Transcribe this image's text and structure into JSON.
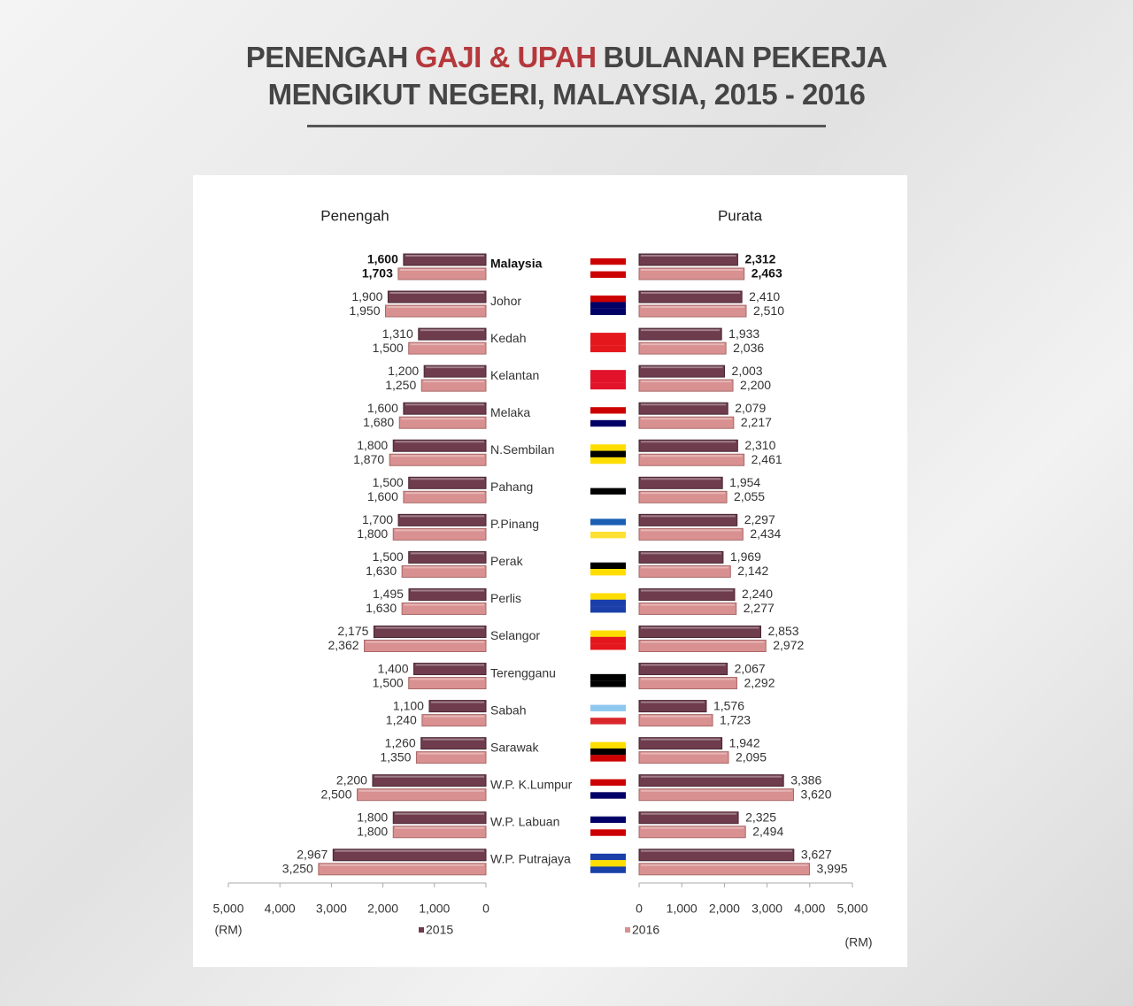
{
  "header": {
    "title": [
      "PENENGAH",
      "GAJI & UPAH",
      "BULANAN PEKERJA",
      "MENGIKUT NEGERI, MALAYSIA, 2015 - 2016"
    ]
  },
  "chart_data": {
    "type": "bar",
    "orientation": "horizontal",
    "categories": [
      "Malaysia",
      "Johor",
      "Kedah",
      "Kelantan",
      "Melaka",
      "N.Sembilan",
      "Pahang",
      "P.Pinang",
      "Perak",
      "Perlis",
      "Selangor",
      "Terengganu",
      "Sabah",
      "Sarawak",
      "W.P. K.Lumpur",
      "W.P. Labuan",
      "W.P. Putrajaya"
    ],
    "legend": [
      {
        "name": "2015",
        "color": "#6e3c4c"
      },
      {
        "name": "2016",
        "color": "#d99090"
      }
    ],
    "panels": [
      {
        "title": "Penengah",
        "reversed": true,
        "xlabel": "(RM)",
        "xlim": [
          0,
          5000
        ],
        "xticks": [
          0,
          {
            "value": 1000,
            "label": "1,000"
          },
          {
            "value": 2000,
            "label": "2,000"
          },
          {
            "value": 3000,
            "label": "3,000"
          },
          {
            "value": 4000,
            "label": "4,000"
          },
          {
            "value": 5000,
            "label": "5,000"
          }
        ],
        "series": [
          {
            "values": [
              1600,
              1900,
              1310,
              1200,
              1600,
              1800,
              1500,
              1700,
              1500,
              1495,
              2175,
              1400,
              1100,
              1260,
              2200,
              1800,
              2967
            ],
            "value_labels": [
              "1,600",
              "1,900",
              "1,310",
              "1,200",
              "1,600",
              "1,800",
              "1,500",
              "1,700",
              "1,500",
              "1,495",
              "2,175",
              "1,400",
              "1,100",
              "1,260",
              "2,200",
              "1,800",
              "2,967"
            ]
          },
          {
            "values": [
              1703,
              1950,
              1500,
              1250,
              1680,
              1870,
              1600,
              1800,
              1630,
              1630,
              2362,
              1500,
              1240,
              1350,
              2500,
              1800,
              3250
            ],
            "value_labels": [
              "1,703",
              "1,950",
              "1,500",
              "1,250",
              "1,680",
              "1,870",
              "1,600",
              "1,800",
              "1,630",
              "1,630",
              "2,362",
              "1,500",
              "1,240",
              "1,350",
              "2,500",
              "1,800",
              "3,250"
            ]
          }
        ]
      },
      {
        "title": "Purata",
        "reversed": false,
        "xlabel": "(RM)",
        "xlim": [
          0,
          5000
        ],
        "xticks": [
          0,
          {
            "value": 1000,
            "label": "1,000"
          },
          {
            "value": 2000,
            "label": "2,000"
          },
          {
            "value": 3000,
            "label": "3,000"
          },
          {
            "value": 4000,
            "label": "4,000"
          },
          {
            "value": 5000,
            "label": "5,000"
          }
        ],
        "series": [
          {
            "values": [
              2312,
              2410,
              1933,
              2003,
              2079,
              2310,
              1954,
              2297,
              1969,
              2240,
              2853,
              2067,
              1576,
              1942,
              3386,
              2325,
              3627
            ],
            "value_labels": [
              "2,312",
              "2,410",
              "1,933",
              "2,003",
              "2,079",
              "2,310",
              "1,954",
              "2,297",
              "1,969",
              "2,240",
              "2,853",
              "2,067",
              "1,576",
              "1,942",
              "3,386",
              "2,325",
              "3,627"
            ]
          },
          {
            "values": [
              2463,
              2510,
              2036,
              2200,
              2217,
              2461,
              2055,
              2434,
              2142,
              2277,
              2972,
              2292,
              1723,
              2095,
              3620,
              2494,
              3995
            ],
            "value_labels": [
              "2,463",
              "2,510",
              "2,036",
              "2,200",
              "2,217",
              "2,461",
              "2,055",
              "2,434",
              "2,142",
              "2,277",
              "2,972",
              "2,292",
              "1,723",
              "2,095",
              "3,620",
              "2,494",
              "3,995"
            ]
          }
        ]
      }
    ]
  }
}
